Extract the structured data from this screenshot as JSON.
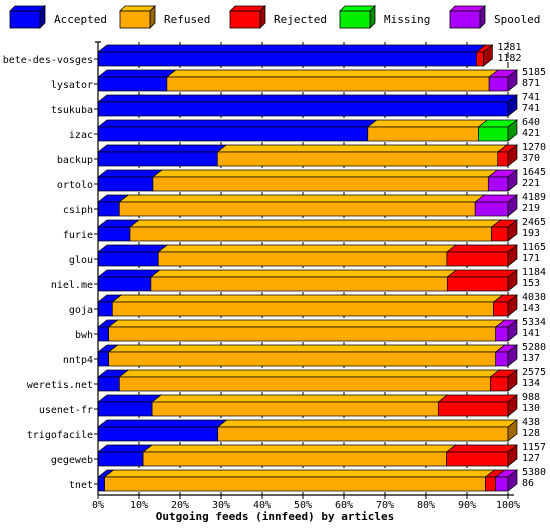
{
  "chart_data": {
    "type": "bar",
    "orientation": "horizontal",
    "stacked": true,
    "grid": true,
    "legend_position": "top",
    "title": "",
    "xlabel": "Outgoing feeds (innfeed) by articles",
    "ylabel": "",
    "xlim": [
      0,
      100
    ],
    "x_ticks": [
      "0%",
      "10%",
      "20%",
      "30%",
      "40%",
      "50%",
      "60%",
      "70%",
      "80%",
      "90%",
      "100%"
    ],
    "series": [
      {
        "name": "Accepted",
        "color": "#0000ff"
      },
      {
        "name": "Refused",
        "color": "#ffaa00"
      },
      {
        "name": "Rejected",
        "color": "#ff0000"
      },
      {
        "name": "Missing",
        "color": "#00ee00"
      },
      {
        "name": "Spooled",
        "color": "#aa00ff"
      }
    ],
    "rows": [
      {
        "name": "bete-des-vosges",
        "offered": "1281",
        "accepted": "1182",
        "pct": [
          92.3,
          0,
          1.7,
          0,
          0
        ]
      },
      {
        "name": "lysator",
        "offered": "5185",
        "accepted": "871",
        "pct": [
          16.8,
          78.6,
          0,
          0,
          4.6
        ]
      },
      {
        "name": "tsukuba",
        "offered": "741",
        "accepted": "741",
        "pct": [
          100,
          0,
          0,
          0,
          0
        ]
      },
      {
        "name": "izac",
        "offered": "640",
        "accepted": "421",
        "pct": [
          65.8,
          27,
          0,
          7.2,
          0
        ]
      },
      {
        "name": "backup",
        "offered": "1270",
        "accepted": "370",
        "pct": [
          29.1,
          68.4,
          2.5,
          0,
          0
        ]
      },
      {
        "name": "ortolo",
        "offered": "1645",
        "accepted": "221",
        "pct": [
          13.4,
          81.8,
          0,
          0,
          4.8
        ]
      },
      {
        "name": "csiph",
        "offered": "4189",
        "accepted": "219",
        "pct": [
          5.2,
          86.8,
          0,
          0,
          8
        ]
      },
      {
        "name": "furie",
        "offered": "2465",
        "accepted": "193",
        "pct": [
          7.8,
          88.2,
          4,
          0,
          0
        ]
      },
      {
        "name": "glou",
        "offered": "1165",
        "accepted": "171",
        "pct": [
          14.7,
          70.4,
          14.9,
          0,
          0
        ]
      },
      {
        "name": "niel.me",
        "offered": "1184",
        "accepted": "153",
        "pct": [
          12.9,
          72.3,
          14.8,
          0,
          0
        ]
      },
      {
        "name": "goja",
        "offered": "4030",
        "accepted": "143",
        "pct": [
          3.5,
          93,
          3.5,
          0,
          0
        ]
      },
      {
        "name": "bwh",
        "offered": "5334",
        "accepted": "141",
        "pct": [
          2.6,
          94.4,
          0,
          0,
          3
        ]
      },
      {
        "name": "nntp4",
        "offered": "5280",
        "accepted": "137",
        "pct": [
          2.6,
          94.4,
          0,
          0,
          3
        ]
      },
      {
        "name": "weretis.net",
        "offered": "2575",
        "accepted": "134",
        "pct": [
          5.2,
          90.5,
          4.3,
          0,
          0
        ]
      },
      {
        "name": "usenet-fr",
        "offered": "988",
        "accepted": "130",
        "pct": [
          13.2,
          69.8,
          17,
          0,
          0
        ]
      },
      {
        "name": "trigofacile",
        "offered": "438",
        "accepted": "128",
        "pct": [
          29.2,
          70.8,
          0,
          0,
          0
        ]
      },
      {
        "name": "gegeweb",
        "offered": "1157",
        "accepted": "127",
        "pct": [
          11,
          74,
          15,
          0,
          0
        ]
      },
      {
        "name": "tnet",
        "offered": "5380",
        "accepted": "86",
        "pct": [
          1.6,
          92.9,
          2.5,
          0,
          3
        ]
      }
    ]
  }
}
